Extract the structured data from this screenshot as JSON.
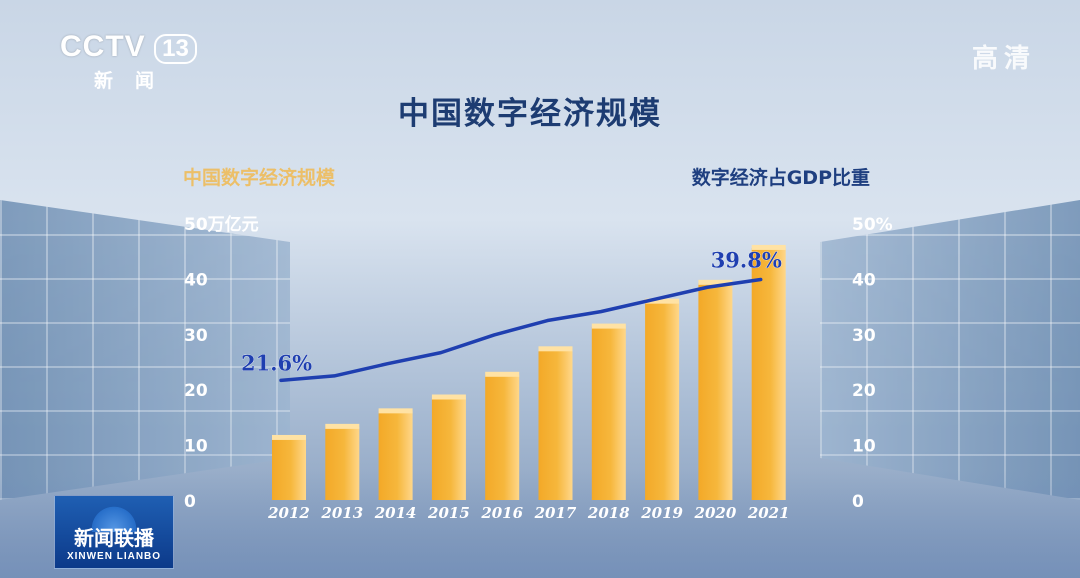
{
  "broadcast": {
    "channel_logo": "CCTV",
    "channel_number": "13",
    "channel_sub": "新闻",
    "hd_label": "高清",
    "program_cn": "新闻联播",
    "program_en": "XINWEN LIANBO"
  },
  "chart_data": {
    "type": "bar",
    "title": "中国数字经济规模",
    "categories": [
      "2012",
      "2013",
      "2014",
      "2015",
      "2016",
      "2017",
      "2018",
      "2019",
      "2020",
      "2021"
    ],
    "series": [
      {
        "name": "中国数字经济规模",
        "type": "bar",
        "axis": "left",
        "color": "#f6b73c",
        "values": [
          11.2,
          13.2,
          16.0,
          18.5,
          22.6,
          27.2,
          31.3,
          35.8,
          39.2,
          45.5
        ]
      },
      {
        "name": "数字经济占GDP比重",
        "type": "line",
        "axis": "right",
        "color": "#1f3fb0",
        "values": [
          21.6,
          22.4,
          24.6,
          26.6,
          29.8,
          32.4,
          34.0,
          36.2,
          38.4,
          39.8
        ],
        "labels": [
          {
            "index": 0,
            "text": "21.6%"
          },
          {
            "index": 9,
            "text": "39.8%"
          }
        ]
      }
    ],
    "y_left": {
      "ticks": [
        "0",
        "10",
        "20",
        "30",
        "40",
        "50万亿元"
      ],
      "range": [
        0,
        50
      ]
    },
    "y_right": {
      "ticks": [
        "0",
        "10",
        "20",
        "30",
        "40",
        "50%"
      ],
      "range": [
        0,
        50
      ]
    },
    "grid": false
  },
  "colors": {
    "title": "#1d3c72",
    "bar": "#f6b73c",
    "line": "#1f3fb0",
    "axis_text": "#ffffff"
  }
}
